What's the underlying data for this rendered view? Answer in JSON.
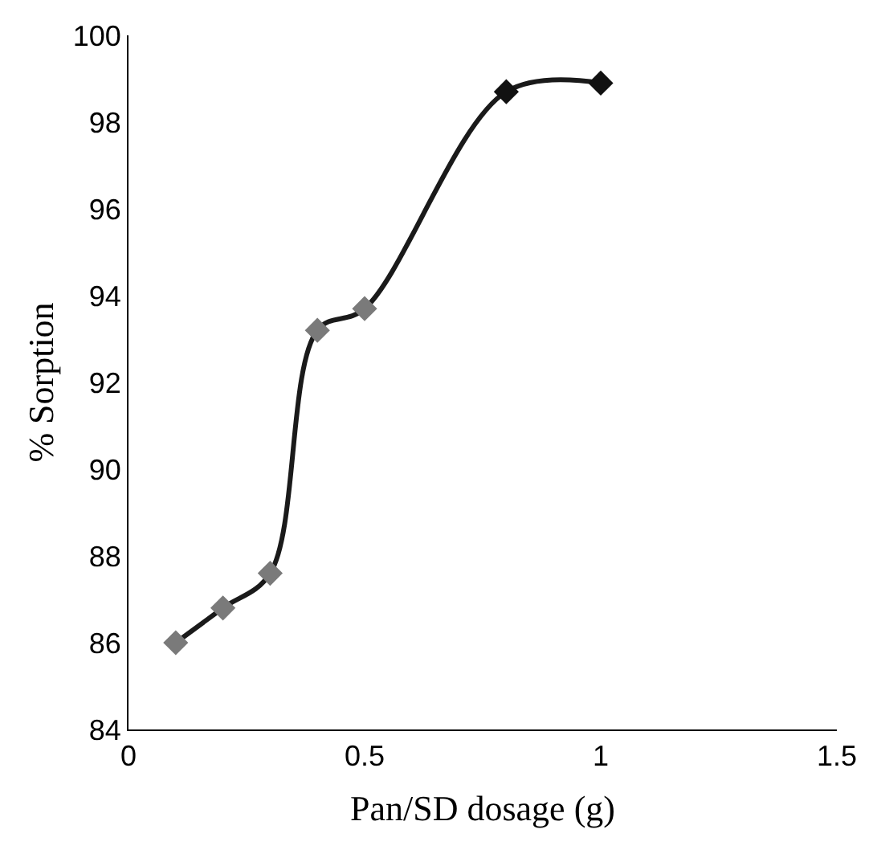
{
  "chart_data": {
    "type": "line",
    "xlabel": "Pan/SD dosage (g)",
    "ylabel": "% Sorption",
    "x": [
      0.1,
      0.2,
      0.3,
      0.4,
      0.5,
      0.8,
      1.0
    ],
    "series": [
      {
        "color": "#1a1a1a",
        "colors": [
          "#7a7a7a",
          "#7a7a7a",
          "#7a7a7a",
          "#7a7a7a",
          "#7a7a7a",
          "#111111",
          "#111111"
        ],
        "values": [
          86.0,
          86.8,
          87.6,
          93.2,
          93.7,
          98.7,
          98.9
        ]
      }
    ],
    "xlim": [
      0,
      1.5
    ],
    "xticks": [
      0,
      0.5,
      1,
      1.5
    ],
    "ylim": [
      84,
      100
    ],
    "yticks": [
      84,
      86,
      88,
      90,
      92,
      94,
      96,
      98,
      100
    ],
    "marker": "diamond",
    "line_style": "solid"
  }
}
